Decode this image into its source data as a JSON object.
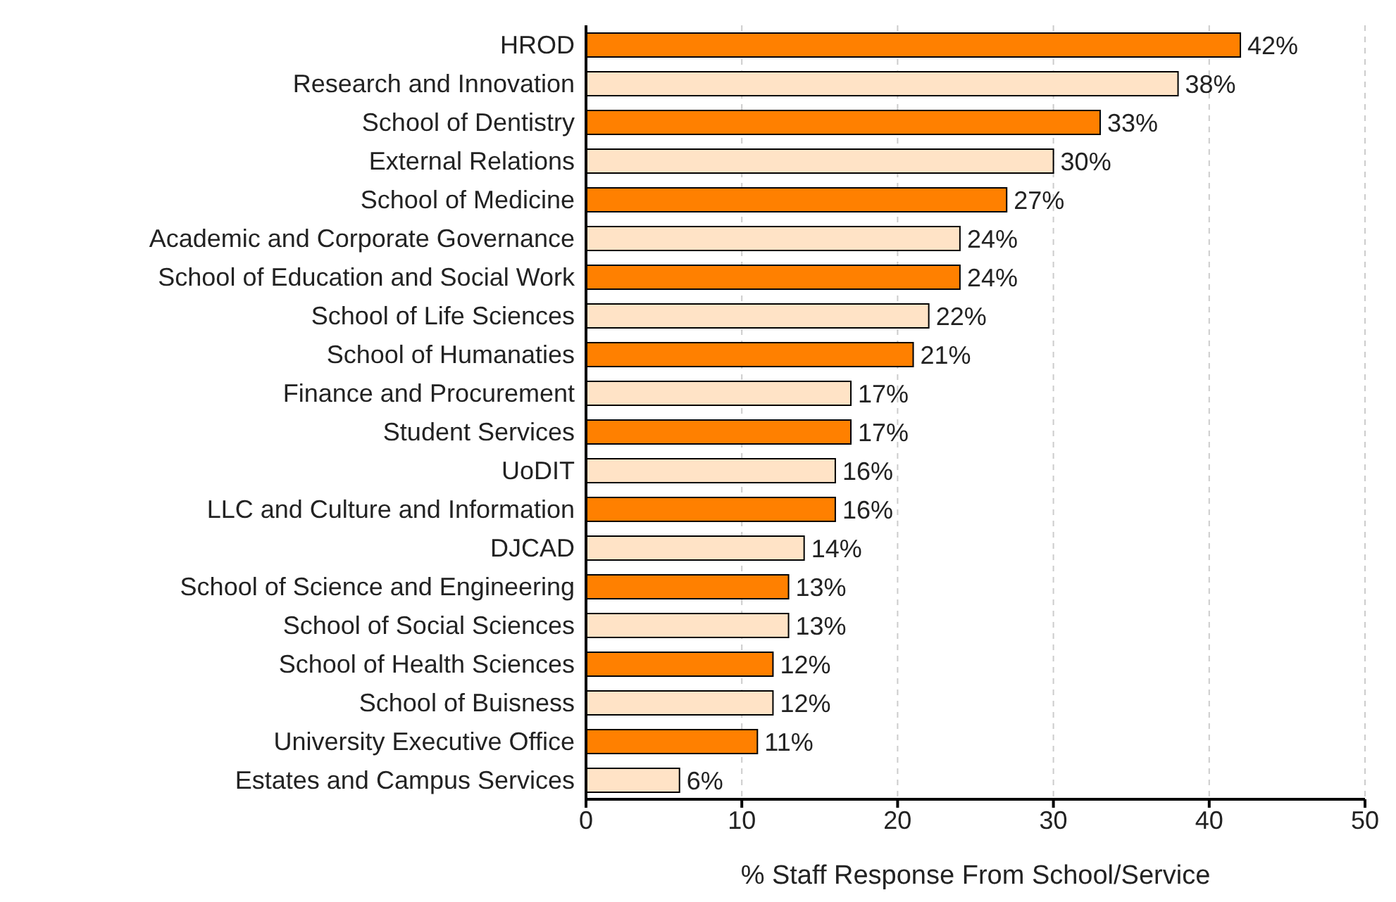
{
  "chart_data": {
    "type": "bar",
    "orientation": "horizontal",
    "xlabel": "% Staff Response From School/Service",
    "categories": [
      "HROD",
      "Research and Innovation",
      "School of Dentistry",
      "External Relations",
      "School of Medicine",
      "Academic and Corporate Governance",
      "School of Education and Social Work",
      "School of  Life Sciences",
      "School of Humanaties",
      "Finance and Procurement",
      "Student Services",
      "UoDIT",
      "LLC and Culture and Information",
      "DJCAD",
      "School of Science and Engineering",
      "School of Social Sciences",
      "School of Health Sciences",
      "School of Buisness",
      "University Executive Office",
      "Estates and Campus Services"
    ],
    "values": [
      42,
      38,
      33,
      30,
      27,
      24,
      24,
      22,
      21,
      17,
      17,
      16,
      16,
      14,
      13,
      13,
      12,
      12,
      11,
      6
    ],
    "value_labels": [
      "42%",
      "38%",
      "33%",
      "30%",
      "27%",
      "24%",
      "24%",
      "22%",
      "21%",
      "17%",
      "17%",
      "16%",
      "16%",
      "14%",
      "13%",
      "13%",
      "12%",
      "12%",
      "11%",
      "6%"
    ],
    "colors": [
      "#ff8000",
      "#ffe3c6",
      "#ff8000",
      "#ffe3c6",
      "#ff8000",
      "#ffe3c6",
      "#ff8000",
      "#ffe3c6",
      "#ff8000",
      "#ffe3c6",
      "#ff8000",
      "#ffe3c6",
      "#ff8000",
      "#ffe3c6",
      "#ff8000",
      "#ffe3c6",
      "#ff8000",
      "#ffe3c6",
      "#ff8000",
      "#ffe3c6"
    ],
    "xlim": [
      0,
      50
    ],
    "xticks": [
      0,
      10,
      20,
      30,
      40,
      50
    ],
    "grid": "x",
    "legend": false
  }
}
